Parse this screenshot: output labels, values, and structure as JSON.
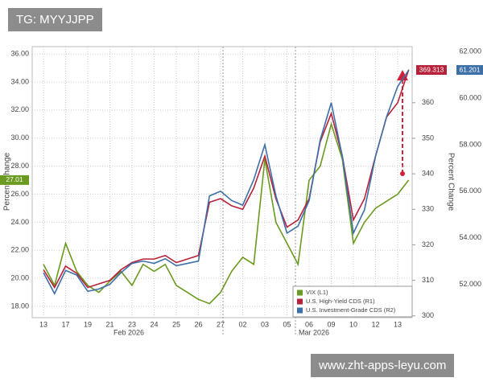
{
  "watermark_top": "TG: MYYJJPP",
  "watermark_bottom": "www.zht-apps-leyu.com",
  "chart_data": {
    "type": "line",
    "y_label": "Percent Change",
    "y2_label": "Percent Change",
    "categories": [
      "13",
      null,
      "17",
      null,
      "19",
      null,
      "21",
      null,
      "23",
      null,
      "24",
      null,
      "25",
      null,
      "26",
      null,
      "27",
      null,
      "02",
      null,
      "03",
      null,
      "05",
      null,
      "06",
      null,
      "09",
      null,
      "10",
      null,
      "12",
      null,
      "13",
      null
    ],
    "x_group_labels": [
      "Feb 2026",
      "Mar 2026"
    ],
    "ylim": [
      17.2,
      36.52
    ],
    "yticks": [
      {
        "value": 18,
        "label": "18.00"
      },
      {
        "value": 20,
        "label": "20.00"
      },
      {
        "value": 22,
        "label": "22.00"
      },
      {
        "value": 24,
        "label": "24.00"
      },
      {
        "value": 26,
        "label": "26.00"
      },
      {
        "value": 28,
        "label": "28.00"
      },
      {
        "value": 30,
        "label": "30.00"
      },
      {
        "value": 32,
        "label": "32.00"
      },
      {
        "value": 34,
        "label": "34.00"
      },
      {
        "value": 36,
        "label": "36.00"
      }
    ],
    "y2lim": [
      299.5,
      375.8
    ],
    "y2ticks": [
      300,
      310,
      320,
      330,
      340,
      350,
      360
    ],
    "y3lim": [
      50.57,
      62.21
    ],
    "y3ticks": [
      {
        "value": 52,
        "label": "52.000"
      },
      {
        "value": 54,
        "label": "54.000"
      },
      {
        "value": 56,
        "label": "56.000"
      },
      {
        "value": 58,
        "label": "58.000"
      },
      {
        "value": 60,
        "label": "60.000"
      },
      {
        "value": 62,
        "label": "62.000"
      }
    ],
    "grid": true,
    "legend": "lower right",
    "series": [
      {
        "name": "VIX (L1)",
        "color": "#6a9a1f",
        "axis": "y",
        "values": [
          21.0,
          19.5,
          22.5,
          20.5,
          19.5,
          19.0,
          19.8,
          20.5,
          19.5,
          21.0,
          20.5,
          21.0,
          19.5,
          19.0,
          18.5,
          18.2,
          19.0,
          20.5,
          21.5,
          21.0,
          28.5,
          24.0,
          22.5,
          21.0,
          27.0,
          28.0,
          31.0,
          28.5,
          22.5,
          24.0,
          25.0,
          25.5,
          26.0,
          27.01
        ]
      },
      {
        "name": "U.S. High-Yield CDS (R1)",
        "color": "#b8213a",
        "axis": "y2",
        "values": [
          313,
          308,
          314,
          312,
          308,
          309,
          310,
          313,
          315,
          316,
          316,
          317,
          315,
          316,
          317,
          332,
          333,
          331,
          330,
          336,
          345,
          333,
          325,
          327,
          333,
          349,
          357,
          345,
          327,
          333,
          345,
          356,
          360,
          369.313
        ]
      },
      {
        "name": "U.S. Investment-Grade CDS (R2)",
        "color": "#3d6fa8",
        "axis": "y3",
        "values": [
          52.5,
          51.6,
          52.6,
          52.4,
          51.7,
          51.8,
          52.0,
          52.5,
          52.9,
          53.0,
          52.9,
          53.1,
          52.8,
          52.9,
          53.0,
          55.8,
          56.0,
          55.6,
          55.4,
          56.5,
          58.0,
          55.8,
          54.2,
          54.5,
          55.6,
          58.2,
          59.8,
          57.5,
          54.2,
          55.2,
          57.5,
          59.2,
          60.5,
          61.201
        ]
      }
    ]
  }
}
